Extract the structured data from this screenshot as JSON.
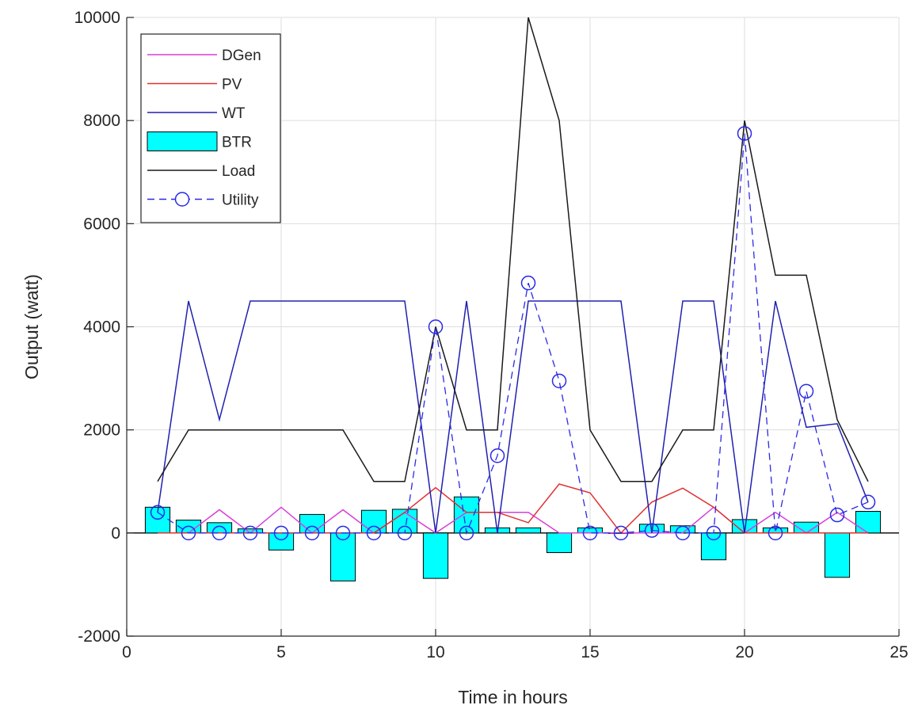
{
  "chart_data": {
    "type": "line",
    "xlabel": "Time in hours",
    "ylabel": "Output (watt)",
    "xlim": [
      0,
      25
    ],
    "ylim": [
      -2000,
      10000
    ],
    "xticks": [
      0,
      5,
      10,
      15,
      20,
      25
    ],
    "yticks": [
      -2000,
      0,
      2000,
      4000,
      6000,
      8000,
      10000
    ],
    "grid": true,
    "legend_position": "top-left",
    "x": [
      1,
      2,
      3,
      4,
      5,
      6,
      7,
      8,
      9,
      10,
      11,
      12,
      13,
      14,
      15,
      16,
      17,
      18,
      19,
      20,
      21,
      22,
      23,
      24
    ],
    "series": [
      {
        "name": "DGen",
        "kind": "line",
        "color": "#d83fd8",
        "values": [
          0,
          0,
          450,
          0,
          500,
          0,
          450,
          0,
          400,
          0,
          400,
          400,
          400,
          0,
          0,
          0,
          0,
          0,
          500,
          0,
          400,
          0,
          400,
          0
        ]
      },
      {
        "name": "PV",
        "kind": "line",
        "color": "#e03030",
        "values": [
          0,
          0,
          0,
          0,
          0,
          0,
          0,
          0,
          400,
          880,
          400,
          400,
          200,
          950,
          780,
          0,
          600,
          870,
          500,
          0,
          0,
          0,
          0,
          0
        ]
      },
      {
        "name": "WT",
        "kind": "line",
        "color": "#2020b0",
        "values": [
          400,
          4500,
          2200,
          4500,
          4500,
          4500,
          4500,
          4500,
          4500,
          0,
          4500,
          0,
          4500,
          4500,
          4500,
          4500,
          0,
          4500,
          4500,
          0,
          4500,
          2050,
          2120,
          600
        ]
      },
      {
        "name": "BTR",
        "kind": "bar",
        "color": "#00ffff",
        "values": [
          500,
          250,
          200,
          80,
          -330,
          360,
          -930,
          440,
          460,
          -880,
          700,
          100,
          100,
          -380,
          100,
          0,
          170,
          140,
          -520,
          260,
          100,
          210,
          -860,
          420
        ]
      },
      {
        "name": "Load",
        "kind": "line",
        "color": "#1a1a1a",
        "values": [
          1000,
          2000,
          2000,
          2000,
          2000,
          2000,
          2000,
          1000,
          1000,
          4000,
          2000,
          2000,
          10000,
          8000,
          2000,
          1000,
          1000,
          2000,
          2000,
          8000,
          5000,
          5000,
          2200,
          1000
        ]
      },
      {
        "name": "Utility",
        "kind": "dashed-line-circle-markers",
        "color": "#2a2ae6",
        "values": [
          400,
          0,
          0,
          0,
          0,
          0,
          0,
          0,
          0,
          4000,
          0,
          1500,
          4850,
          2950,
          0,
          0,
          50,
          0,
          0,
          7750,
          0,
          2750,
          350,
          600
        ]
      }
    ]
  }
}
